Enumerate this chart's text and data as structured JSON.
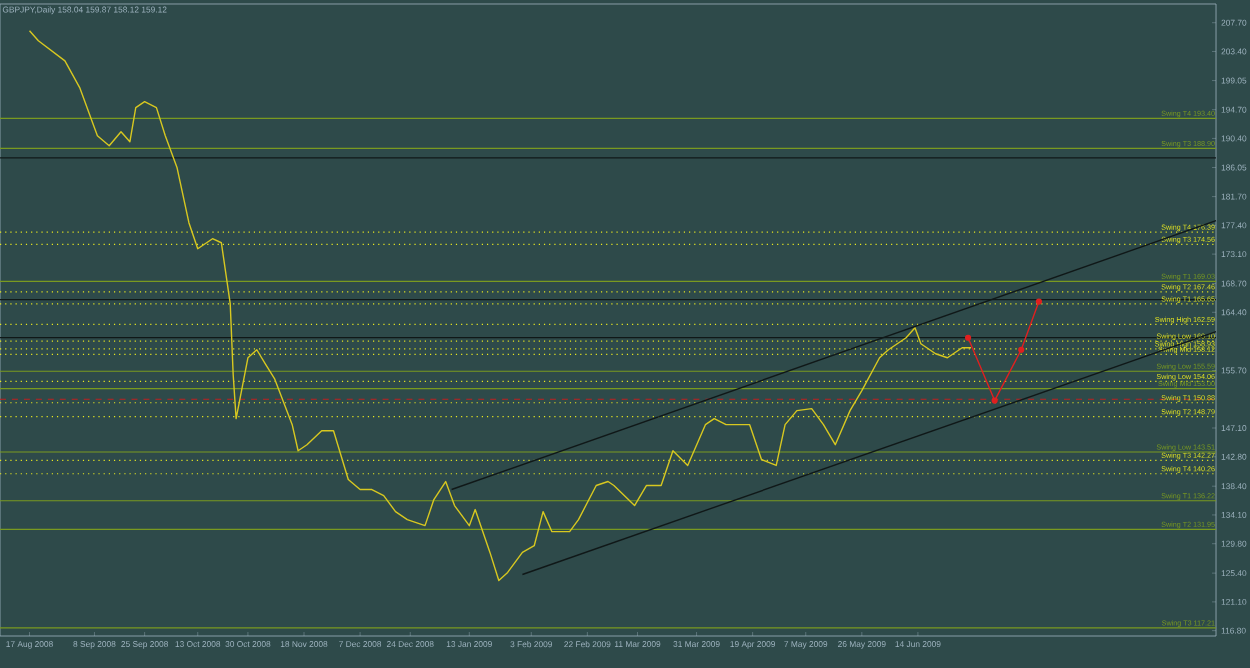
{
  "chart_data": {
    "type": "line",
    "title": "GBPJPY,Daily 158.04 159.87 158.12 159.12",
    "xlim": [
      "2008-08-07",
      "2009-09-23"
    ],
    "ylim": [
      116,
      210.5
    ],
    "xticks": [
      {
        "value": "2008-08-17",
        "label": "17 Aug 2008"
      },
      {
        "value": "2008-09-08",
        "label": "8 Sep 2008"
      },
      {
        "value": "2008-09-25",
        "label": "25 Sep 2008"
      },
      {
        "value": "2008-10-13",
        "label": "13 Oct 2008"
      },
      {
        "value": "2008-10-30",
        "label": "30 Oct 2008"
      },
      {
        "value": "2008-11-18",
        "label": "18 Nov 2008"
      },
      {
        "value": "2008-12-07",
        "label": "7 Dec 2008"
      },
      {
        "value": "2008-12-24",
        "label": "24 Dec 2008"
      },
      {
        "value": "2009-01-13",
        "label": "13 Jan 2009"
      },
      {
        "value": "2009-02-03",
        "label": "3 Feb 2009"
      },
      {
        "value": "2009-02-22",
        "label": "22 Feb 2009"
      },
      {
        "value": "2009-03-11",
        "label": "11 Mar 2009"
      },
      {
        "value": "2009-03-31",
        "label": "31 Mar 2009"
      },
      {
        "value": "2009-04-19",
        "label": "19 Apr 2009"
      },
      {
        "value": "2009-05-07",
        "label": "7 May 2009"
      },
      {
        "value": "2009-05-26",
        "label": "26 May 2009"
      },
      {
        "value": "2009-06-14",
        "label": "14 Jun 2009"
      }
    ],
    "yticks": [
      {
        "value": 207.7,
        "label": "207.70"
      },
      {
        "value": 203.4,
        "label": "203.40"
      },
      {
        "value": 199.05,
        "label": "199.05"
      },
      {
        "value": 194.7,
        "label": "194.70"
      },
      {
        "value": 190.4,
        "label": "190.40"
      },
      {
        "value": 186.05,
        "label": "186.05"
      },
      {
        "value": 181.7,
        "label": "181.70"
      },
      {
        "value": 177.4,
        "label": "177.40"
      },
      {
        "value": 173.1,
        "label": "173.10"
      },
      {
        "value": 168.7,
        "label": "168.70"
      },
      {
        "value": 164.4,
        "label": "164.40"
      },
      {
        "value": 155.7,
        "label": "155.70"
      },
      {
        "value": 147.1,
        "label": "147.10"
      },
      {
        "value": 142.8,
        "label": "142.80"
      },
      {
        "value": 138.4,
        "label": "138.40"
      },
      {
        "value": 134.1,
        "label": "134.10"
      },
      {
        "value": 129.8,
        "label": "129.80"
      },
      {
        "value": 125.4,
        "label": "125.40"
      },
      {
        "value": 121.1,
        "label": "121.10"
      },
      {
        "value": 116.8,
        "label": "116.80"
      }
    ],
    "series": [
      {
        "color": "#d8c820",
        "x": [
          "2008-08-17",
          "2008-08-20",
          "2008-08-29",
          "2008-09-03",
          "2008-09-08",
          "2008-09-09",
          "2008-09-13",
          "2008-09-17",
          "2008-09-20",
          "2008-09-22",
          "2008-09-25",
          "2008-09-29",
          "2008-10-02",
          "2008-10-06",
          "2008-10-10",
          "2008-10-13",
          "2008-10-16",
          "2008-10-18",
          "2008-10-21",
          "2008-10-24",
          "2008-10-25",
          "2008-10-26",
          "2008-10-30",
          "2008-11-02",
          "2008-11-05",
          "2008-11-08",
          "2008-11-14",
          "2008-11-16",
          "2008-11-19",
          "2008-11-24",
          "2008-11-28",
          "2008-12-03",
          "2008-12-07",
          "2008-12-11",
          "2008-12-15",
          "2008-12-19",
          "2008-12-23",
          "2008-12-29",
          "2009-01-01",
          "2009-01-05",
          "2009-01-08",
          "2009-01-13",
          "2009-01-15",
          "2009-01-20",
          "2009-01-23",
          "2009-01-26",
          "2009-01-31",
          "2009-02-04",
          "2009-02-07",
          "2009-02-10",
          "2009-02-16",
          "2009-02-19",
          "2009-02-25",
          "2009-03-01",
          "2009-03-03",
          "2009-03-10",
          "2009-03-14",
          "2009-03-19",
          "2009-03-23",
          "2009-03-28",
          "2009-04-03",
          "2009-04-06",
          "2009-04-10",
          "2009-04-18",
          "2009-04-22",
          "2009-04-27",
          "2009-04-30",
          "2009-05-04",
          "2009-05-09",
          "2009-05-13",
          "2009-05-17",
          "2009-05-22",
          "2009-05-26",
          "2009-06-01",
          "2009-06-04",
          "2009-06-10",
          "2009-06-13",
          "2009-06-15",
          "2009-06-20",
          "2009-06-24",
          "2009-06-29",
          "2009-07-02"
        ],
        "values": [
          206.5,
          205,
          202,
          198,
          192,
          190.8,
          189.3,
          191.4,
          189.9,
          195,
          195.9,
          195,
          190.8,
          186,
          177.8,
          173.9,
          174.8,
          175.4,
          174.8,
          165.7,
          155.1,
          148.5,
          157.6,
          158.8,
          156.6,
          154.5,
          147.6,
          143.7,
          144.6,
          146.7,
          146.7,
          139.4,
          137.9,
          137.9,
          137,
          134.6,
          133.4,
          132.5,
          136.4,
          139.1,
          135.5,
          132.5,
          134.9,
          128.5,
          124.3,
          125.5,
          128.5,
          129.5,
          134.6,
          131.6,
          131.6,
          133.4,
          138.5,
          139.1,
          138.5,
          135.5,
          138.5,
          138.5,
          143.7,
          141.5,
          147.6,
          148.5,
          147.6,
          147.6,
          142.4,
          141.5,
          147.6,
          149.7,
          150,
          147.6,
          144.6,
          149.7,
          152.7,
          157.6,
          158.8,
          160.6,
          162.1,
          159.7,
          158.2,
          157.6,
          159.1,
          159.1
        ]
      },
      {
        "color": "#101818",
        "x": [
          "2009-01-07",
          "2009-09-23"
        ],
        "values": [
          137.9,
          178.1
        ]
      },
      {
        "color": "#101818",
        "x": [
          "2009-01-31",
          "2009-09-23"
        ],
        "values": [
          125.2,
          161.5
        ]
      },
      {
        "color": "#e02020",
        "marker": "circle",
        "x": [
          "2009-07-01",
          "2009-07-10",
          "2009-07-19",
          "2009-07-25"
        ],
        "values": [
          160.6,
          151.2,
          158.8,
          166
        ]
      }
    ],
    "ref_lines": [
      {
        "axis": "y",
        "value": 187.5,
        "color": "#101818"
      },
      {
        "axis": "y",
        "value": 166.3,
        "color": "#101818"
      },
      {
        "axis": "y",
        "value": 160.6,
        "color": "#101818"
      },
      {
        "axis": "y",
        "value": 151.4,
        "color": "#c02020",
        "line_style": "dashed"
      },
      {
        "axis": "y",
        "value": 193.4,
        "label": "Swing T4 193.40",
        "color": "#7a9a20"
      },
      {
        "axis": "y",
        "value": 188.9,
        "label": "Swing T3 188.90",
        "color": "#7a9a20"
      },
      {
        "axis": "y",
        "value": 176.39,
        "label": "Swing T4 176.39",
        "color": "#e8e820",
        "line_style": "dotted"
      },
      {
        "axis": "y",
        "value": 174.56,
        "label": "Swing T3 174.56",
        "color": "#e8e820",
        "line_style": "dotted"
      },
      {
        "axis": "y",
        "value": 169.03,
        "label": "Swing T1 169.03",
        "color": "#7a9a20"
      },
      {
        "axis": "y",
        "value": 167.46,
        "label": "Swing T2 167.46",
        "color": "#e8e820",
        "line_style": "dotted"
      },
      {
        "axis": "y",
        "value": 165.65,
        "label": "Swing T1 165.65",
        "color": "#e8e820",
        "line_style": "dotted"
      },
      {
        "axis": "y",
        "value": 162.59,
        "label": "Swing High 162.59",
        "color": "#e8e820",
        "line_style": "dotted"
      },
      {
        "axis": "y",
        "value": 160.1,
        "label": "Swing Low 160.10",
        "color": "#e8e820",
        "line_style": "dotted"
      },
      {
        "axis": "y",
        "value": 158.93,
        "label": "Swing High 158.93",
        "color": "#e8e820",
        "line_style": "dotted"
      },
      {
        "axis": "y",
        "value": 158.12,
        "label": "Swing Mid 158.12",
        "color": "#e8e820",
        "line_style": "dotted"
      },
      {
        "axis": "y",
        "value": 155.59,
        "label": "Swing Low 155.59",
        "color": "#7a9a20"
      },
      {
        "axis": "y",
        "value": 154.06,
        "label": "Swing Low 154.06",
        "color": "#e8e820",
        "line_style": "dotted"
      },
      {
        "axis": "y",
        "value": 153.0,
        "label": "Swing Mid 153.00",
        "color": "#7a9a20"
      },
      {
        "axis": "y",
        "value": 150.88,
        "label": "Swing T1 150.88",
        "color": "#e8e820",
        "line_style": "dotted"
      },
      {
        "axis": "y",
        "value": 148.79,
        "label": "Swing T2 148.79",
        "color": "#e8e820",
        "line_style": "dotted"
      },
      {
        "axis": "y",
        "value": 143.51,
        "label": "Swing Low 143.51",
        "color": "#7a9a20"
      },
      {
        "axis": "y",
        "value": 142.27,
        "label": "Swing T3 142.27",
        "color": "#e8e820",
        "line_style": "dotted"
      },
      {
        "axis": "y",
        "value": 140.26,
        "label": "Swing T4 140.26",
        "color": "#e8e820",
        "line_style": "dotted"
      },
      {
        "axis": "y",
        "value": 136.22,
        "label": "Swing T1 136.22",
        "color": "#7a9a20"
      },
      {
        "axis": "y",
        "value": 131.95,
        "label": "Swing T2 131.95",
        "color": "#7a9a20"
      },
      {
        "axis": "y",
        "value": 117.21,
        "label": "Swing T3 117.21",
        "color": "#7a9a20"
      }
    ]
  }
}
